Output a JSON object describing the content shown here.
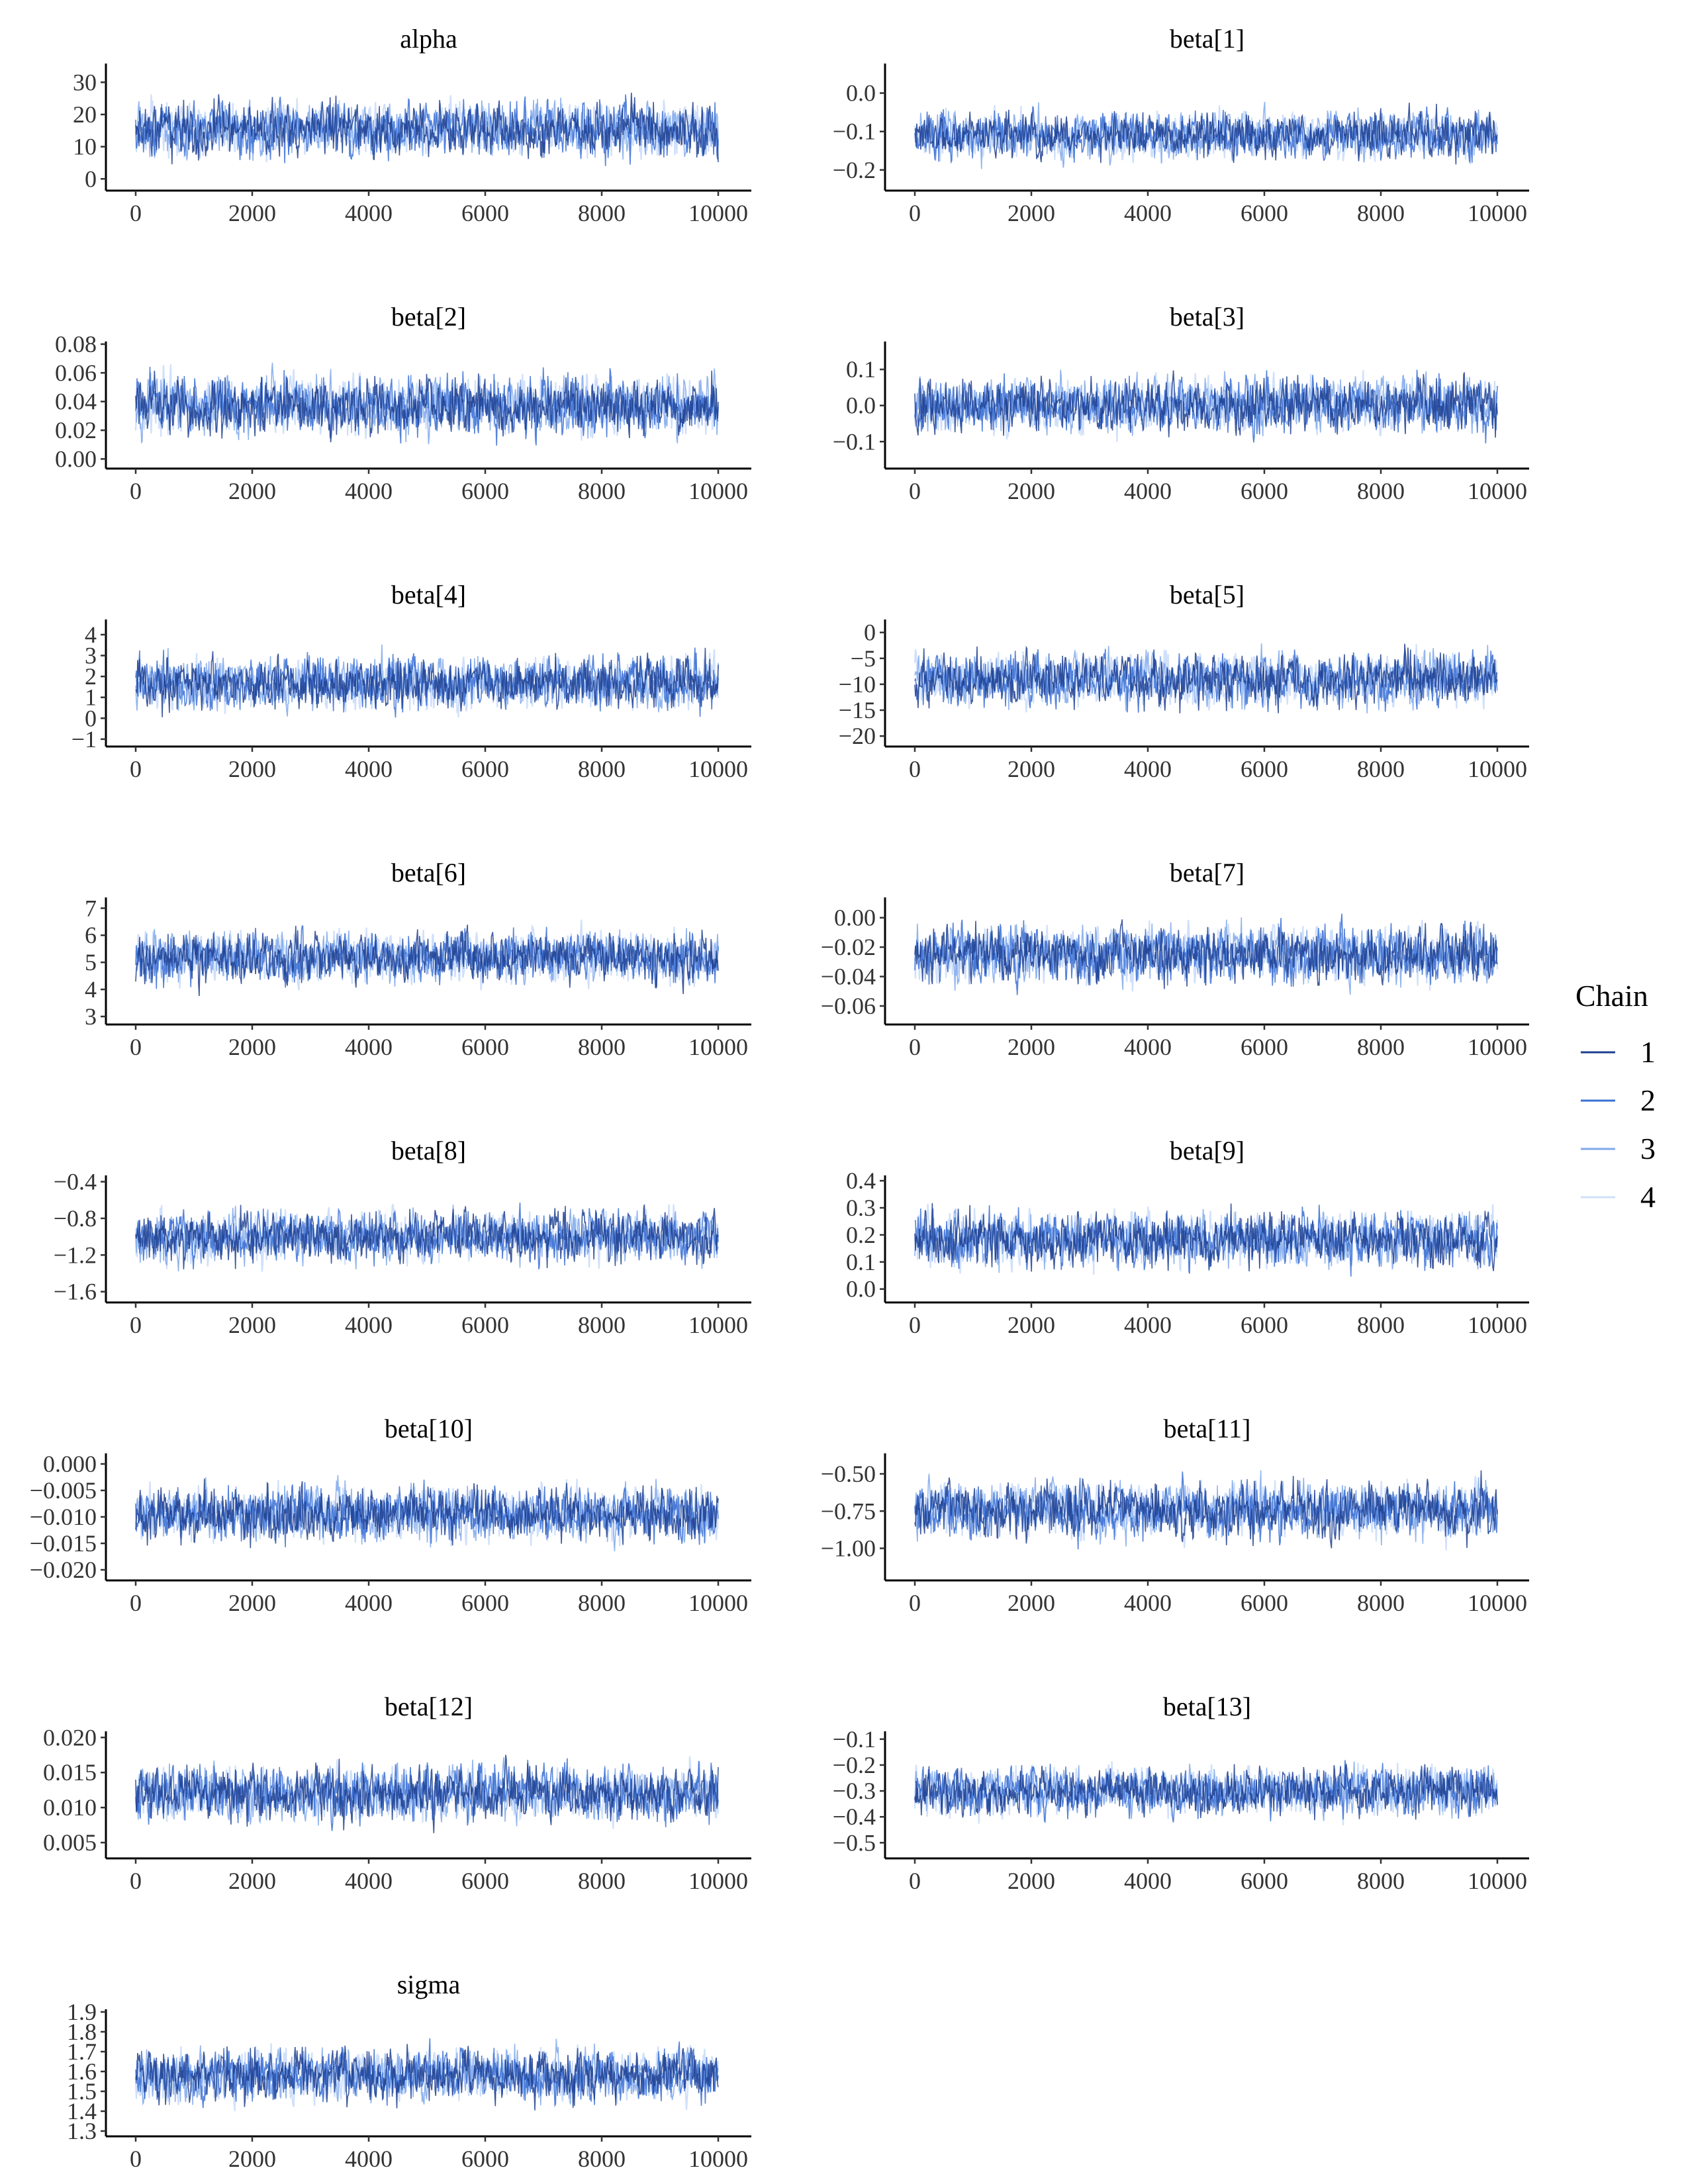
{
  "legend": {
    "title": "Chain",
    "items": [
      {
        "label": "1",
        "color": "#1e3f8f"
      },
      {
        "label": "2",
        "color": "#3a6fd4"
      },
      {
        "label": "3",
        "color": "#7fa8ea"
      },
      {
        "label": "4",
        "color": "#d0e0fb"
      }
    ]
  },
  "chart_data": [
    {
      "type": "line",
      "title": "alpha",
      "xlim": [
        0,
        10000
      ],
      "xticks": [
        "0",
        "2000",
        "4000",
        "6000",
        "8000",
        "10000"
      ],
      "ylim": [
        -2,
        35
      ],
      "yticks": [
        {
          "v": 0,
          "t": "0"
        },
        {
          "v": 10,
          "t": "10"
        },
        {
          "v": 20,
          "t": "20"
        },
        {
          "v": 30,
          "t": "30"
        }
      ],
      "center": 15.5,
      "spread": 9,
      "chains": [
        "1",
        "2",
        "3",
        "4"
      ],
      "iterations": 10000
    },
    {
      "type": "line",
      "title": "beta[1]",
      "xlim": [
        0,
        10000
      ],
      "xticks": [
        "0",
        "2000",
        "4000",
        "6000",
        "8000",
        "10000"
      ],
      "ylim": [
        -0.24,
        0.07
      ],
      "yticks": [
        {
          "v": -0.2,
          "t": "−0.2"
        },
        {
          "v": -0.1,
          "t": "−0.1"
        },
        {
          "v": 0.0,
          "t": "0.0"
        }
      ],
      "center": -0.11,
      "spread": 0.065,
      "chains": [
        "1",
        "2",
        "3",
        "4"
      ],
      "iterations": 10000
    },
    {
      "type": "line",
      "title": "beta[2]",
      "xlim": [
        0,
        10000
      ],
      "xticks": [
        "0",
        "2000",
        "4000",
        "6000",
        "8000",
        "10000"
      ],
      "ylim": [
        -0.003,
        0.08
      ],
      "yticks": [
        {
          "v": 0.0,
          "t": "0.00"
        },
        {
          "v": 0.02,
          "t": "0.02"
        },
        {
          "v": 0.04,
          "t": "0.04"
        },
        {
          "v": 0.06,
          "t": "0.06"
        },
        {
          "v": 0.08,
          "t": "0.08"
        }
      ],
      "center": 0.037,
      "spread": 0.022,
      "chains": [
        "1",
        "2",
        "3",
        "4"
      ],
      "iterations": 10000
    },
    {
      "type": "line",
      "title": "beta[3]",
      "xlim": [
        0,
        10000
      ],
      "xticks": [
        "0",
        "2000",
        "4000",
        "6000",
        "8000",
        "10000"
      ],
      "ylim": [
        -0.16,
        0.17
      ],
      "yticks": [
        {
          "v": -0.1,
          "t": "−0.1"
        },
        {
          "v": 0.0,
          "t": "0.0"
        },
        {
          "v": 0.1,
          "t": "0.1"
        }
      ],
      "center": 0.0,
      "spread": 0.08,
      "chains": [
        "1",
        "2",
        "3",
        "4"
      ],
      "iterations": 10000
    },
    {
      "type": "line",
      "title": "beta[4]",
      "xlim": [
        0,
        10000
      ],
      "xticks": [
        "0",
        "2000",
        "4000",
        "6000",
        "8000",
        "10000"
      ],
      "ylim": [
        -1.1,
        4.6
      ],
      "yticks": [
        {
          "v": -1,
          "t": "−1"
        },
        {
          "v": 0,
          "t": "0"
        },
        {
          "v": 1,
          "t": "1"
        },
        {
          "v": 2,
          "t": "2"
        },
        {
          "v": 3,
          "t": "3"
        },
        {
          "v": 4,
          "t": "4"
        }
      ],
      "center": 1.7,
      "spread": 1.35,
      "chains": [
        "1",
        "2",
        "3",
        "4"
      ],
      "iterations": 10000
    },
    {
      "type": "line",
      "title": "beta[5]",
      "xlim": [
        0,
        10000
      ],
      "xticks": [
        "0",
        "2000",
        "4000",
        "6000",
        "8000",
        "10000"
      ],
      "ylim": [
        -21,
        2
      ],
      "yticks": [
        {
          "v": -20,
          "t": "−20"
        },
        {
          "v": -15,
          "t": "−15"
        },
        {
          "v": -10,
          "t": "−10"
        },
        {
          "v": -5,
          "t": "−5"
        },
        {
          "v": 0,
          "t": "0"
        }
      ],
      "center": -9,
      "spread": 5.5,
      "chains": [
        "1",
        "2",
        "3",
        "4"
      ],
      "iterations": 10000
    },
    {
      "type": "line",
      "title": "beta[6]",
      "xlim": [
        0,
        10000
      ],
      "xticks": [
        "0",
        "2000",
        "4000",
        "6000",
        "8000",
        "10000"
      ],
      "ylim": [
        2.9,
        7.3
      ],
      "yticks": [
        {
          "v": 3,
          "t": "3"
        },
        {
          "v": 4,
          "t": "4"
        },
        {
          "v": 5,
          "t": "5"
        },
        {
          "v": 6,
          "t": "6"
        },
        {
          "v": 7,
          "t": "7"
        }
      ],
      "center": 5.2,
      "spread": 1.0,
      "chains": [
        "1",
        "2",
        "3",
        "4"
      ],
      "iterations": 10000
    },
    {
      "type": "line",
      "title": "beta[7]",
      "xlim": [
        0,
        10000
      ],
      "xticks": [
        "0",
        "2000",
        "4000",
        "6000",
        "8000",
        "10000"
      ],
      "ylim": [
        -0.069,
        0.012
      ],
      "yticks": [
        {
          "v": -0.06,
          "t": "−0.06"
        },
        {
          "v": -0.04,
          "t": "−0.04"
        },
        {
          "v": -0.02,
          "t": "−0.02"
        },
        {
          "v": 0.0,
          "t": "0.00"
        }
      ],
      "center": -0.025,
      "spread": 0.02,
      "chains": [
        "1",
        "2",
        "3",
        "4"
      ],
      "iterations": 10000
    },
    {
      "type": "line",
      "title": "beta[8]",
      "xlim": [
        0,
        10000
      ],
      "xticks": [
        "0",
        "2000",
        "4000",
        "6000",
        "8000",
        "10000"
      ],
      "ylim": [
        -1.66,
        -0.36
      ],
      "yticks": [
        {
          "v": -1.6,
          "t": "−1.6"
        },
        {
          "v": -1.2,
          "t": "−1.2"
        },
        {
          "v": -0.8,
          "t": "−0.8"
        },
        {
          "v": -0.4,
          "t": "−0.4"
        }
      ],
      "center": -1.0,
      "spread": 0.3,
      "chains": [
        "1",
        "2",
        "3",
        "4"
      ],
      "iterations": 10000
    },
    {
      "type": "line",
      "title": "beta[9]",
      "xlim": [
        0,
        10000
      ],
      "xticks": [
        "0",
        "2000",
        "4000",
        "6000",
        "8000",
        "10000"
      ],
      "ylim": [
        -0.03,
        0.41
      ],
      "yticks": [
        {
          "v": 0.0,
          "t": "0.0"
        },
        {
          "v": 0.1,
          "t": "0.1"
        },
        {
          "v": 0.2,
          "t": "0.2"
        },
        {
          "v": 0.3,
          "t": "0.3"
        },
        {
          "v": 0.4,
          "t": "0.4"
        }
      ],
      "center": 0.185,
      "spread": 0.11,
      "chains": [
        "1",
        "2",
        "3",
        "4"
      ],
      "iterations": 10000
    },
    {
      "type": "line",
      "title": "beta[10]",
      "xlim": [
        0,
        10000
      ],
      "xticks": [
        "0",
        "2000",
        "4000",
        "6000",
        "8000",
        "10000"
      ],
      "ylim": [
        -0.021,
        0.0015
      ],
      "yticks": [
        {
          "v": -0.02,
          "t": "−0.020"
        },
        {
          "v": -0.015,
          "t": "−0.015"
        },
        {
          "v": -0.01,
          "t": "−0.010"
        },
        {
          "v": -0.005,
          "t": "−0.005"
        },
        {
          "v": 0.0,
          "t": "0.000"
        }
      ],
      "center": -0.0095,
      "spread": 0.0055,
      "chains": [
        "1",
        "2",
        "3",
        "4"
      ],
      "iterations": 10000
    },
    {
      "type": "line",
      "title": "beta[11]",
      "xlim": [
        0,
        10000
      ],
      "xticks": [
        "0",
        "2000",
        "4000",
        "6000",
        "8000",
        "10000"
      ],
      "ylim": [
        -1.18,
        -0.38
      ],
      "yticks": [
        {
          "v": -1.0,
          "t": "−1.00"
        },
        {
          "v": -0.75,
          "t": "−0.75"
        },
        {
          "v": -0.5,
          "t": "−0.50"
        }
      ],
      "center": -0.74,
      "spread": 0.2,
      "chains": [
        "1",
        "2",
        "3",
        "4"
      ],
      "iterations": 10000
    },
    {
      "type": "line",
      "title": "beta[12]",
      "xlim": [
        0,
        10000
      ],
      "xticks": [
        "0",
        "2000",
        "4000",
        "6000",
        "8000",
        "10000"
      ],
      "ylim": [
        0.0035,
        0.0205
      ],
      "yticks": [
        {
          "v": 0.005,
          "t": "0.005"
        },
        {
          "v": 0.01,
          "t": "0.010"
        },
        {
          "v": 0.015,
          "t": "0.015"
        },
        {
          "v": 0.02,
          "t": "0.020"
        }
      ],
      "center": 0.012,
      "spread": 0.0042,
      "chains": [
        "1",
        "2",
        "3",
        "4"
      ],
      "iterations": 10000
    },
    {
      "type": "line",
      "title": "beta[13]",
      "xlim": [
        0,
        10000
      ],
      "xticks": [
        "0",
        "2000",
        "4000",
        "6000",
        "8000",
        "10000"
      ],
      "ylim": [
        -0.54,
        -0.08
      ],
      "yticks": [
        {
          "v": -0.5,
          "t": "−0.5"
        },
        {
          "v": -0.4,
          "t": "−0.4"
        },
        {
          "v": -0.3,
          "t": "−0.3"
        },
        {
          "v": -0.2,
          "t": "−0.2"
        },
        {
          "v": -0.1,
          "t": "−0.1"
        }
      ],
      "center": -0.3,
      "spread": 0.1,
      "chains": [
        "1",
        "2",
        "3",
        "4"
      ],
      "iterations": 10000
    },
    {
      "type": "line",
      "title": "sigma",
      "xlim": [
        0,
        10000
      ],
      "xticks": [
        "0",
        "2000",
        "4000",
        "6000",
        "8000",
        "10000"
      ],
      "ylim": [
        1.3,
        1.9
      ],
      "yticks": [
        {
          "v": 1.3,
          "t": "1.3"
        },
        {
          "v": 1.4,
          "t": "1.4"
        },
        {
          "v": 1.5,
          "t": "1.5"
        },
        {
          "v": 1.6,
          "t": "1.6"
        },
        {
          "v": 1.7,
          "t": "1.7"
        },
        {
          "v": 1.8,
          "t": "1.8"
        },
        {
          "v": 1.9,
          "t": "1.9"
        }
      ],
      "center": 1.58,
      "spread": 0.14,
      "chains": [
        "1",
        "2",
        "3",
        "4"
      ],
      "iterations": 10000
    }
  ]
}
